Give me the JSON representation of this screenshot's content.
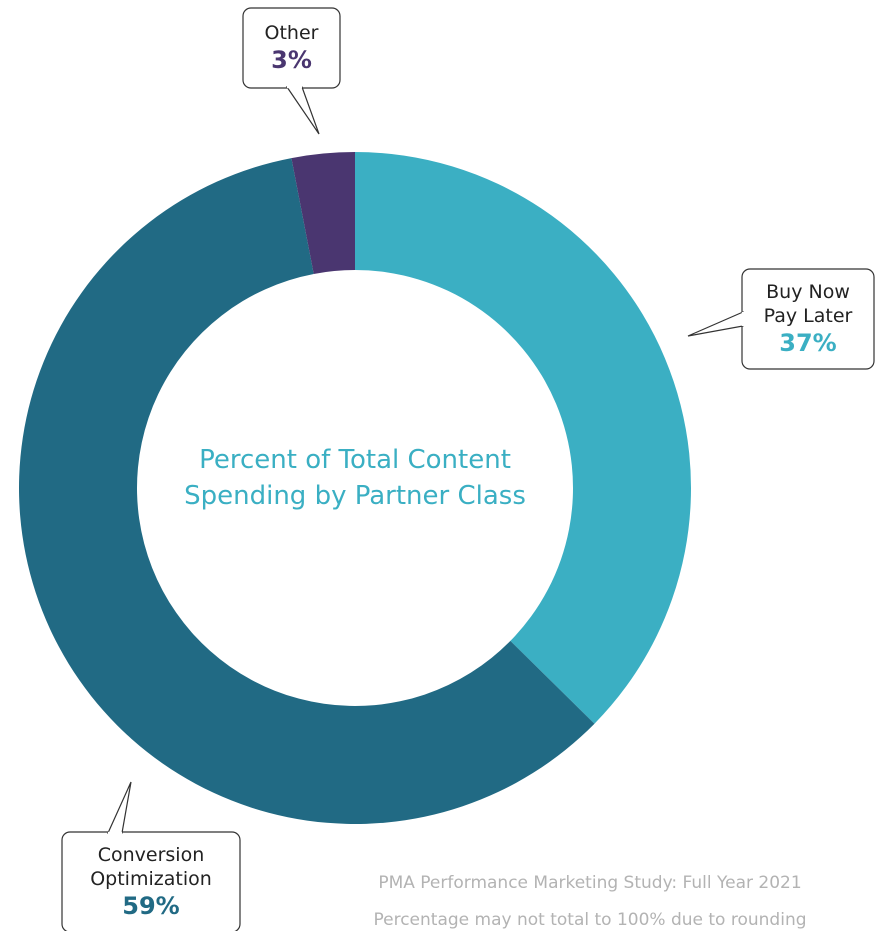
{
  "chart_data": {
    "type": "pie",
    "title_lines": [
      "Percent of Total Content",
      "Spending by Partner Class"
    ],
    "slices": [
      {
        "name_lines": [
          "Buy Now",
          "Pay Later"
        ],
        "value": 37,
        "label": "37%",
        "color": "#3bafc3"
      },
      {
        "name_lines": [
          "Conversion",
          "Optimization"
        ],
        "value": 59,
        "label": "59%",
        "color": "#216a84"
      },
      {
        "name_lines": [
          "Other"
        ],
        "value": 3,
        "label": "3%",
        "color": "#4a3670"
      }
    ]
  },
  "footer": {
    "source": "PMA Performance Marketing Study: Full Year 2021",
    "note": "Percentage may not total to 100% due to rounding"
  }
}
